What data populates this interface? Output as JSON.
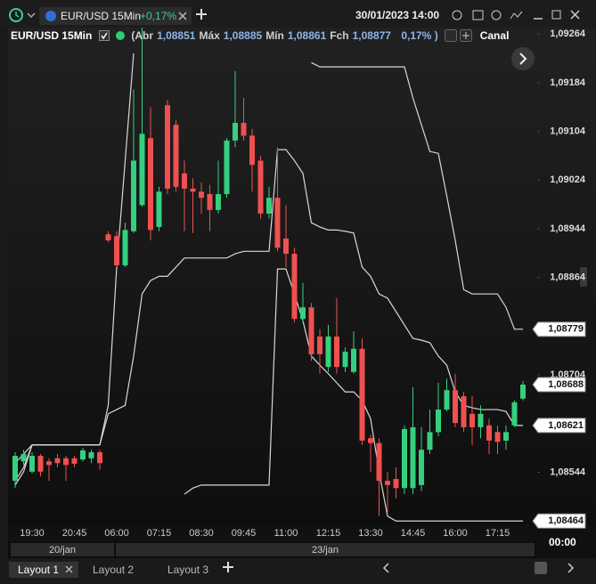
{
  "toolbar": {
    "tab_symbol": "EUR/USD 15Min",
    "tab_change": "+0,17%",
    "datetime": "30/01/2023 14:00"
  },
  "legend": {
    "symbol": "EUR/USD 15Min",
    "items": [
      {
        "label": "(Abr",
        "value": "1,08851"
      },
      {
        "label": "Máx",
        "value": "1,08885"
      },
      {
        "label": "Mín",
        "value": "1,08861"
      },
      {
        "label": "Fch",
        "value": "1,08877"
      }
    ],
    "change": "0,17% )",
    "indicator": "Canal"
  },
  "chart_data": {
    "type": "candlestick",
    "categories": [
      null,
      null,
      "19:30",
      null,
      null,
      null,
      null,
      "20:45",
      null,
      null,
      null,
      null,
      "06:00",
      null,
      null,
      null,
      null,
      "07:15",
      null,
      null,
      null,
      null,
      "08:30",
      null,
      null,
      null,
      null,
      "09:45",
      null,
      null,
      null,
      null,
      "11:00",
      null,
      null,
      null,
      null,
      "12:15",
      null,
      null,
      null,
      null,
      "13:30",
      null,
      null,
      null,
      null,
      "14:45",
      null,
      null,
      null,
      null,
      "16:00",
      null,
      null,
      null,
      null,
      "17:15",
      null,
      null,
      null
    ],
    "open": [
      1.0853,
      1.08562,
      1.08545,
      1.08571,
      1.08562,
      1.08567,
      1.08567,
      1.08567,
      1.08565,
      1.08567,
      1.08577,
      1.08935,
      1.08932,
      1.08884,
      1.0894,
      1.08983,
      1.09093,
      1.08947,
      1.09147,
      1.09115,
      1.09035,
      1.0901,
      1.09005,
      1.09001,
      1.08975,
      1.09001,
      1.09089,
      1.09118,
      1.09097,
      1.09056,
      1.08969,
      1.08995,
      1.08928,
      1.08903,
      1.08796,
      1.08815,
      1.08767,
      1.08717,
      1.08767,
      1.08717,
      1.08709,
      1.08747,
      1.086,
      1.08592,
      1.0853,
      1.08533,
      1.08518,
      1.08518,
      1.08523,
      1.08581,
      1.0861,
      1.08647,
      1.08679,
      1.08669,
      1.0864,
      1.08618,
      1.08621,
      1.0861,
      1.08596,
      1.08621,
      1.08665
    ],
    "high": [
      1.08577,
      1.08581,
      1.08577,
      1.08574,
      1.08567,
      1.08574,
      1.08571,
      1.08571,
      1.08584,
      1.08581,
      1.08581,
      1.0894,
      1.0894,
      1.08954,
      1.09173,
      1.09276,
      1.09144,
      1.09013,
      1.09156,
      1.09122,
      1.09056,
      1.09027,
      1.0902,
      1.09016,
      1.09056,
      1.09093,
      1.09203,
      1.09159,
      1.09108,
      1.09064,
      1.09013,
      1.09078,
      1.08983,
      1.08913,
      1.08855,
      1.08822,
      1.08779,
      1.08786,
      1.0883,
      1.08749,
      1.08776,
      1.08764,
      1.08606,
      1.086,
      1.08545,
      1.08552,
      1.08621,
      1.08684,
      1.08618,
      1.08647,
      1.08691,
      1.08698,
      1.08706,
      1.08676,
      1.08669,
      1.08654,
      1.08632,
      1.08621,
      1.08621,
      1.08662,
      1.08694
    ],
    "low": [
      1.08518,
      1.08556,
      1.08542,
      1.08537,
      1.0853,
      1.08552,
      1.0853,
      1.08552,
      1.08562,
      1.08559,
      1.08548,
      1.08922,
      1.08881,
      1.08881,
      1.08937,
      1.0898,
      1.08925,
      1.0894,
      1.09001,
      1.09005,
      1.0894,
      1.08937,
      1.08969,
      1.0894,
      1.08969,
      1.08995,
      1.09078,
      1.09089,
      1.09005,
      1.08961,
      1.08961,
      1.08907,
      1.08881,
      1.0879,
      1.0879,
      1.08727,
      1.08706,
      1.08709,
      1.08706,
      1.08709,
      1.08706,
      1.08589,
      1.08545,
      1.08472,
      1.08479,
      1.08501,
      1.08508,
      1.08508,
      1.08513,
      1.08574,
      1.08603,
      1.08644,
      1.08618,
      1.0861,
      1.08589,
      1.086,
      1.08574,
      1.08574,
      1.08581,
      1.08618,
      1.08662
    ],
    "close": [
      1.08571,
      1.08574,
      1.08571,
      1.08545,
      1.08556,
      1.08559,
      1.08556,
      1.08558,
      1.0858,
      1.08577,
      1.08559,
      1.08925,
      1.08884,
      1.08942,
      1.09056,
      1.091,
      1.08942,
      1.09005,
      1.0901,
      1.09013,
      1.0901,
      1.09005,
      1.08995,
      1.08975,
      1.09001,
      1.09089,
      1.09118,
      1.09097,
      1.09049,
      1.08969,
      1.08995,
      1.08913,
      1.08903,
      1.08796,
      1.08815,
      1.08738,
      1.08738,
      1.08767,
      1.08717,
      1.08742,
      1.08747,
      1.08596,
      1.08592,
      1.0853,
      1.08523,
      1.08518,
      1.08615,
      1.08618,
      1.08581,
      1.0861,
      1.08647,
      1.08679,
      1.08625,
      1.08618,
      1.08618,
      1.0864,
      1.08596,
      1.08594,
      1.0861,
      1.08659,
      1.08688
    ],
    "up_color": "#35d07f",
    "down_color": "#f0504f",
    "series": [
      {
        "color": "#d8d8d8",
        "values": [
          1.08559,
          1.08574,
          1.08589,
          1.08589,
          1.08589,
          1.08589,
          1.08589,
          1.08589,
          1.08589,
          1.08589,
          1.08589,
          1.08654,
          1.08881,
          1.09056,
          1.09232,
          null,
          null,
          null,
          null,
          null,
          null,
          null,
          null,
          null,
          null,
          null,
          null,
          null,
          null,
          null,
          null,
          null,
          null,
          null,
          null,
          1.09217,
          1.0921,
          1.0921,
          1.0921,
          1.0921,
          1.0921,
          1.0921,
          1.0921,
          1.0921,
          1.0921,
          1.0921,
          1.0921,
          1.09159,
          1.09115,
          1.09071,
          1.09068,
          1.08998,
          1.08925,
          1.08844,
          1.08837,
          1.08837,
          1.08837,
          1.08837,
          1.08815,
          1.08779,
          1.08779
        ]
      },
      {
        "color": "#d8d8d8",
        "values": [
          1.0853,
          1.08552,
          1.08589,
          1.08589,
          1.08589,
          1.08589,
          1.08589,
          1.08589,
          1.08589,
          1.08589,
          1.08589,
          1.0864,
          1.08647,
          1.08654,
          1.08735,
          1.08837,
          1.08859,
          1.08866,
          1.08866,
          1.08881,
          1.08896,
          1.08896,
          1.08896,
          1.08896,
          1.08896,
          1.08896,
          1.08903,
          1.08907,
          1.08907,
          1.08907,
          1.08907,
          1.09074,
          1.09074,
          1.09056,
          1.09035,
          1.08954,
          1.08947,
          1.08942,
          1.08942,
          1.0894,
          1.08937,
          1.08881,
          1.08866,
          1.08837,
          1.0883,
          1.08808,
          1.08786,
          1.08764,
          1.08761,
          1.08757,
          1.08735,
          1.0872,
          1.08676,
          1.08654,
          1.0865,
          1.08647,
          1.08647,
          1.08647,
          1.08644,
          1.08621,
          1.08621
        ]
      },
      {
        "color": "#d8d8d8",
        "values": [
          1.08523,
          1.08545,
          1.08589,
          1.08589,
          1.08589,
          1.08589,
          1.08589,
          1.08589,
          1.08589,
          1.08589,
          1.08589,
          null,
          null,
          null,
          null,
          null,
          null,
          null,
          null,
          null,
          1.08508,
          1.08518,
          1.08523,
          1.08523,
          1.08523,
          1.08523,
          1.08523,
          1.08523,
          1.08523,
          1.08523,
          1.08523,
          1.08878,
          1.08878,
          1.08837,
          1.08793,
          1.08735,
          1.0872,
          1.08706,
          1.08691,
          1.08676,
          1.08676,
          1.08662,
          1.08632,
          1.08545,
          1.08472,
          1.08464,
          1.08464,
          1.08464,
          1.08464,
          1.08464,
          1.08464,
          1.08464,
          1.08464,
          1.08464,
          1.08464,
          1.08464,
          1.08464,
          1.08464,
          1.08464,
          1.08464,
          1.08464
        ]
      }
    ],
    "ylim": [
      1.08457,
      1.09276
    ],
    "yticks": [
      {
        "value": 1.08544,
        "label": "1,08544"
      },
      {
        "value": 1.08704,
        "label": "1,08704"
      },
      {
        "value": 1.08864,
        "label": "1,08864"
      },
      {
        "value": 1.08944,
        "label": "1,08944"
      },
      {
        "value": 1.09024,
        "label": "1,09024"
      },
      {
        "value": 1.09104,
        "label": "1,09104"
      },
      {
        "value": 1.09184,
        "label": "1,09184"
      },
      {
        "value": 1.09264,
        "label": "1,09264"
      }
    ],
    "price_tags": [
      {
        "value": 1.08779,
        "label": "1,08779"
      },
      {
        "value": 1.08688,
        "label": "1,08688"
      },
      {
        "value": 1.08621,
        "label": "1,08621"
      },
      {
        "value": 1.08464,
        "label": "1,08464"
      }
    ],
    "grid": false,
    "dates": [
      "20/jan",
      "23/jan"
    ]
  },
  "footer": {
    "time": "00:00",
    "layouts": [
      "Layout 1",
      "Layout 2",
      "Layout 3"
    ]
  }
}
